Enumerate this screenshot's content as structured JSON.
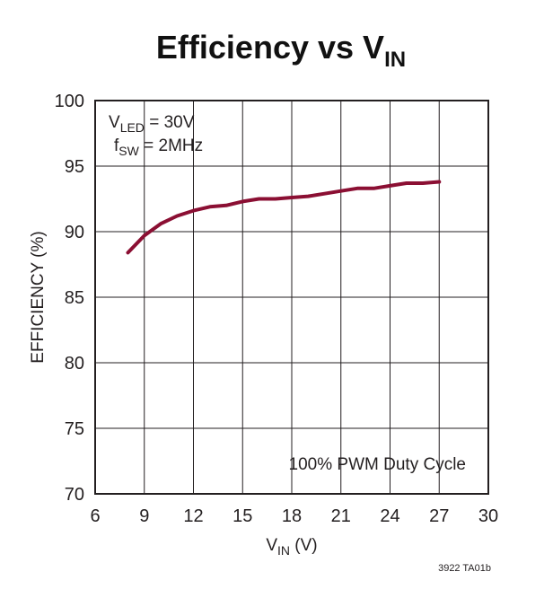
{
  "chart_data": {
    "type": "line",
    "title": {
      "main": "Efficiency vs V",
      "sub": "IN"
    },
    "xlabel": {
      "main": "V",
      "sub": "IN",
      "tail": " (V)"
    },
    "ylabel": "EFFICIENCY (%)",
    "xlim": [
      6,
      30
    ],
    "ylim": [
      70,
      100
    ],
    "xticks": [
      6,
      9,
      12,
      15,
      18,
      21,
      24,
      27,
      30
    ],
    "yticks": [
      70,
      75,
      80,
      85,
      90,
      95,
      100
    ],
    "grid": true,
    "annotations": {
      "vled": {
        "main": "V",
        "sub": "LED",
        "tail": " = 30V"
      },
      "fsw": {
        "main": "f",
        "sub": "SW",
        "tail": " = 2MHz"
      },
      "duty": "100% PWM Duty Cycle"
    },
    "series": [
      {
        "color": "#8b0f33",
        "x": [
          8,
          9,
          10,
          11,
          12,
          13,
          14,
          15,
          16,
          17,
          18,
          19,
          20,
          21,
          22,
          23,
          24,
          25,
          26,
          27
        ],
        "y": [
          88.4,
          89.7,
          90.6,
          91.2,
          91.6,
          91.9,
          92.0,
          92.3,
          92.5,
          92.5,
          92.6,
          92.7,
          92.9,
          93.1,
          93.3,
          93.3,
          93.5,
          93.7,
          93.7,
          93.8
        ]
      }
    ]
  },
  "figure_code": "3922 TA01b"
}
